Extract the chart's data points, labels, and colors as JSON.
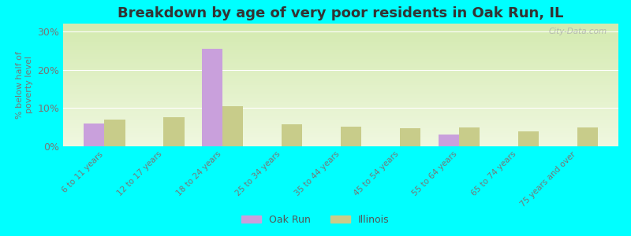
{
  "title": "Breakdown by age of very poor residents in Oak Run, IL",
  "ylabel": "% below half of\npoverty level",
  "categories": [
    "6 to 11 years",
    "12 to 17 years",
    "18 to 24 years",
    "25 to 34 years",
    "35 to 44 years",
    "45 to 54 years",
    "55 to 64 years",
    "65 to 74 years",
    "75 years and over"
  ],
  "oak_run": [
    6.0,
    0.0,
    25.5,
    0.0,
    0.0,
    0.0,
    3.0,
    0.0,
    0.0
  ],
  "illinois": [
    7.0,
    7.5,
    10.5,
    5.8,
    5.2,
    4.8,
    5.0,
    3.8,
    5.0
  ],
  "oak_run_color": "#c9a0dc",
  "illinois_color": "#c8cc8a",
  "background_color": "#00ffff",
  "plot_bg_color": "#eef5e0",
  "ylim": [
    0,
    32
  ],
  "yticks": [
    0,
    10,
    20,
    30
  ],
  "ytick_labels": [
    "0%",
    "10%",
    "20%",
    "30%"
  ],
  "title_fontsize": 13,
  "label_fontsize": 9,
  "watermark": "City-Data.com",
  "bar_width": 0.35
}
